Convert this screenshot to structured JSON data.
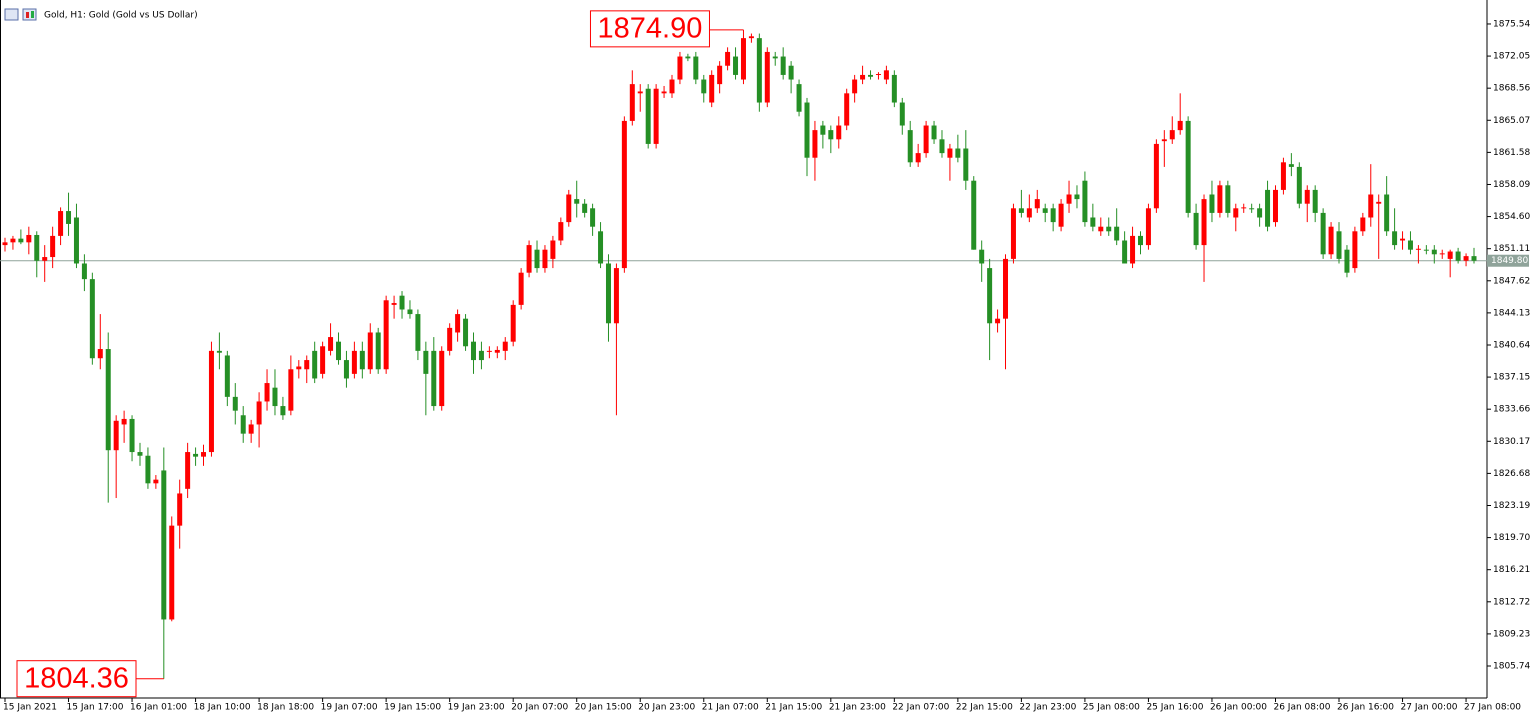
{
  "chart_data": {
    "type": "candlestick",
    "title": "Gold, H1:  Gold (Gold vs US Dollar)",
    "up_color": "#ff0000",
    "down_color": "#258f25",
    "ylim": [
      1802.37,
      1877.82
    ],
    "yticks": [
      1875.54,
      1872.05,
      1868.56,
      1865.07,
      1861.58,
      1858.09,
      {
        "value": 1854.6,
        "label": "1854.60"
      },
      1851.11,
      1847.62,
      1844.13,
      1840.64,
      1837.15,
      1833.66,
      1830.17,
      1826.68,
      1823.19,
      {
        "value": 1819.7,
        "label": "1819.70"
      },
      1816.21,
      1812.72,
      1809.23,
      1805.74
    ],
    "current_price": {
      "value": 1849.8,
      "label": "1849.80"
    },
    "annotations": [
      {
        "value": 1874.9,
        "label": "1874.90"
      },
      {
        "value": 1804.36,
        "label": "1804.36"
      }
    ],
    "categories": [
      "15 Jan 2021",
      null,
      null,
      null,
      null,
      null,
      null,
      null,
      "15 Jan 17:00",
      null,
      null,
      null,
      null,
      null,
      null,
      null,
      "16 Jan 01:00",
      null,
      null,
      null,
      null,
      null,
      null,
      null,
      "18 Jan 10:00",
      null,
      null,
      null,
      null,
      null,
      null,
      null,
      "18 Jan 18:00",
      null,
      null,
      null,
      null,
      null,
      null,
      null,
      "19 Jan 07:00",
      null,
      null,
      null,
      null,
      null,
      null,
      null,
      "19 Jan 15:00",
      null,
      null,
      null,
      null,
      null,
      null,
      null,
      "19 Jan 23:00",
      null,
      null,
      null,
      null,
      null,
      null,
      null,
      "20 Jan 07:00",
      null,
      null,
      null,
      null,
      null,
      null,
      null,
      "20 Jan 15:00",
      null,
      null,
      null,
      null,
      null,
      null,
      null,
      "20 Jan 23:00",
      null,
      null,
      null,
      null,
      null,
      null,
      null,
      "21 Jan 07:00",
      null,
      null,
      null,
      null,
      null,
      null,
      null,
      "21 Jan 15:00",
      null,
      null,
      null,
      null,
      null,
      null,
      null,
      "21 Jan 23:00",
      null,
      null,
      null,
      null,
      null,
      null,
      null,
      "22 Jan 07:00",
      null,
      null,
      null,
      null,
      null,
      null,
      null,
      "22 Jan 15:00",
      null,
      null,
      null,
      null,
      null,
      null,
      null,
      "22 Jan 23:00",
      null,
      null,
      null,
      null,
      null,
      null,
      null,
      "25 Jan 08:00",
      null,
      null,
      null,
      null,
      null,
      null,
      null,
      "25 Jan 16:00",
      null,
      null,
      null,
      null,
      null,
      null,
      null,
      "26 Jan 00:00",
      null,
      null,
      null,
      null,
      null,
      null,
      null,
      "26 Jan 08:00",
      null,
      null,
      null,
      null,
      null,
      null,
      null,
      "26 Jan 16:00",
      null,
      null,
      null,
      null,
      null,
      null,
      null,
      "27 Jan 00:00",
      null,
      null,
      null,
      null,
      null,
      null,
      null,
      "27 Jan 08:00",
      null
    ],
    "candles": [
      [
        1851.5,
        1852.3,
        1850.8,
        1851.8
      ],
      [
        1851.8,
        1852.5,
        1851,
        1852.2
      ],
      [
        1852.2,
        1853.2,
        1851.6,
        1851.8
      ],
      [
        1851.8,
        1853.5,
        1850.5,
        1852.6
      ],
      [
        1852.6,
        1853,
        1848,
        1849.8
      ],
      [
        1849.8,
        1851.5,
        1847.5,
        1850.2
      ],
      [
        1850.2,
        1853.5,
        1849,
        1852.5
      ],
      [
        1852.5,
        1855.6,
        1851.5,
        1855.2
      ],
      [
        1855.2,
        1857.2,
        1852.5,
        1853.8
      ],
      [
        1854.5,
        1856,
        1849,
        1849.5
      ],
      [
        1849.5,
        1850.5,
        1846.5,
        1847.8
      ],
      [
        1847.8,
        1848.5,
        1838.5,
        1839.2
      ],
      [
        1839.2,
        1844,
        1838,
        1840.2
      ],
      [
        1840.2,
        1842,
        1823.5,
        1829.2
      ],
      [
        1829.2,
        1833,
        1824,
        1832.4
      ],
      [
        1832,
        1833.5,
        1830,
        1832.6
      ],
      [
        1832.6,
        1833,
        1828,
        1829
      ],
      [
        1829,
        1830,
        1827.5,
        1828.6
      ],
      [
        1828.6,
        1829.5,
        1825,
        1825.6
      ],
      [
        1825.6,
        1826.5,
        1825,
        1826
      ],
      [
        1827,
        1829.5,
        1804.36,
        1810.8
      ],
      [
        1810.8,
        1822,
        1810.6,
        1821
      ],
      [
        1821,
        1826,
        1818.5,
        1824.5
      ],
      [
        1825,
        1830,
        1824,
        1829
      ],
      [
        1828.8,
        1829.5,
        1827.5,
        1828.5
      ],
      [
        1828.5,
        1829.8,
        1827.5,
        1829
      ],
      [
        1829,
        1841,
        1828.5,
        1840
      ],
      [
        1840,
        1842,
        1838,
        1839.8
      ],
      [
        1839.5,
        1840,
        1834,
        1835
      ],
      [
        1835,
        1836.5,
        1832,
        1833.5
      ],
      [
        1833,
        1834,
        1830,
        1831
      ],
      [
        1831,
        1832.5,
        1830,
        1832
      ],
      [
        1832,
        1835.5,
        1829.5,
        1834.5
      ],
      [
        1834.5,
        1838,
        1833.5,
        1836.5
      ],
      [
        1836,
        1838,
        1833,
        1834
      ],
      [
        1834,
        1835,
        1832.5,
        1833
      ],
      [
        1833.5,
        1839.5,
        1833,
        1838
      ],
      [
        1838,
        1839,
        1837,
        1838.3
      ],
      [
        1838,
        1839.5,
        1836.5,
        1839
      ],
      [
        1840,
        1841,
        1836.5,
        1837
      ],
      [
        1837.5,
        1841,
        1837,
        1840.5
      ],
      [
        1840,
        1843,
        1839.5,
        1841.5
      ],
      [
        1841,
        1842,
        1838.5,
        1839
      ],
      [
        1839,
        1840,
        1836,
        1837
      ],
      [
        1837.5,
        1841,
        1837,
        1840
      ],
      [
        1840,
        1841,
        1837,
        1838
      ],
      [
        1838,
        1843,
        1837.5,
        1842
      ],
      [
        1842,
        1842.5,
        1837.5,
        1838
      ],
      [
        1838,
        1846,
        1837.5,
        1845.5
      ],
      [
        1845,
        1846,
        1843.5,
        1845.2
      ],
      [
        1846,
        1846.5,
        1843.5,
        1844.5
      ],
      [
        1844.5,
        1845.5,
        1843.5,
        1844
      ],
      [
        1844,
        1844.5,
        1839,
        1840
      ],
      [
        1840,
        1841,
        1833,
        1837.5
      ],
      [
        1840,
        1841.5,
        1833.5,
        1834
      ],
      [
        1834,
        1840.5,
        1833.5,
        1840
      ],
      [
        1840,
        1843,
        1839.5,
        1842.5
      ],
      [
        1842,
        1844.5,
        1841,
        1844
      ],
      [
        1843.5,
        1844,
        1840,
        1840.5
      ],
      [
        1841,
        1842,
        1837.5,
        1839
      ],
      [
        1840,
        1841,
        1838,
        1839
      ],
      [
        1840,
        1840.5,
        1839.2,
        1840
      ],
      [
        1839.8,
        1840.5,
        1839.2,
        1840.1
      ],
      [
        1840,
        1841.5,
        1839,
        1841
      ],
      [
        1841,
        1845.5,
        1840.5,
        1845
      ],
      [
        1845,
        1849,
        1844.5,
        1848.5
      ],
      [
        1848.5,
        1852,
        1848,
        1851.5
      ],
      [
        1851,
        1852,
        1848.5,
        1849
      ],
      [
        1849,
        1851.5,
        1848.5,
        1851
      ],
      [
        1850,
        1852.5,
        1849,
        1852
      ],
      [
        1852,
        1854.5,
        1851.5,
        1854
      ],
      [
        1854,
        1857.5,
        1853.5,
        1857
      ],
      [
        1856.5,
        1858.5,
        1854.5,
        1856
      ],
      [
        1856,
        1856.5,
        1854.5,
        1855
      ],
      [
        1855.5,
        1856,
        1852.5,
        1853.5
      ],
      [
        1853,
        1854,
        1849,
        1849.5
      ],
      [
        1849.5,
        1850.5,
        1841,
        1843
      ],
      [
        1843,
        1849.5,
        1833,
        1849
      ],
      [
        1849,
        1865.5,
        1848.5,
        1865
      ],
      [
        1865,
        1870.5,
        1864.5,
        1869
      ],
      [
        1868,
        1869,
        1866,
        1868.2
      ],
      [
        1868.5,
        1869,
        1862,
        1862.5
      ],
      [
        1862.5,
        1869,
        1862,
        1868.5
      ],
      [
        1868,
        1868.8,
        1867.5,
        1868.2
      ],
      [
        1868,
        1870,
        1867.5,
        1869.5
      ],
      [
        1869.5,
        1872.5,
        1869,
        1872
      ],
      [
        1872,
        1872.3,
        1871.5,
        1871.8
      ],
      [
        1872,
        1872.5,
        1869,
        1869.5
      ],
      [
        1869.5,
        1870,
        1867,
        1868
      ],
      [
        1867,
        1870.5,
        1866.5,
        1870
      ],
      [
        1869,
        1871.5,
        1868,
        1871
      ],
      [
        1871,
        1873,
        1870.5,
        1872.5
      ],
      [
        1872,
        1873,
        1869.5,
        1870
      ],
      [
        1869.5,
        1874.9,
        1869,
        1874
      ],
      [
        1874,
        1874.5,
        1873.5,
        1874.2
      ],
      [
        1874,
        1874.5,
        1866,
        1867
      ],
      [
        1867,
        1873,
        1866.5,
        1872.5
      ],
      [
        1872,
        1872.5,
        1871,
        1871.8
      ],
      [
        1872,
        1873,
        1869.5,
        1870
      ],
      [
        1871,
        1871.5,
        1868,
        1869.5
      ],
      [
        1869,
        1869.5,
        1865.5,
        1866
      ],
      [
        1867,
        1867.5,
        1859,
        1861
      ],
      [
        1861,
        1865,
        1858.5,
        1864
      ],
      [
        1864.5,
        1865,
        1862,
        1863.5
      ],
      [
        1864,
        1864.5,
        1861.5,
        1863
      ],
      [
        1863,
        1865.5,
        1862,
        1864.5
      ],
      [
        1864.5,
        1868.5,
        1864,
        1868
      ],
      [
        1868,
        1870,
        1867,
        1869.5
      ],
      [
        1869.5,
        1871,
        1869,
        1870
      ],
      [
        1870,
        1870.5,
        1869.5,
        1869.8
      ],
      [
        1870,
        1870.3,
        1869.5,
        1870.1
      ],
      [
        1869.5,
        1871,
        1869,
        1870.5
      ],
      [
        1870,
        1870.5,
        1866.5,
        1867
      ],
      [
        1867,
        1867.5,
        1863.5,
        1864.5
      ],
      [
        1864,
        1865,
        1860,
        1860.5
      ],
      [
        1860.5,
        1862.5,
        1860,
        1861.5
      ],
      [
        1861.5,
        1865,
        1861,
        1864.5
      ],
      [
        1864.5,
        1865,
        1862.5,
        1863
      ],
      [
        1863,
        1864,
        1861,
        1861.5
      ],
      [
        1861,
        1862.5,
        1858.5,
        1862
      ],
      [
        1862,
        1863.5,
        1860.5,
        1861
      ],
      [
        1862,
        1864,
        1857.5,
        1858.5
      ],
      [
        1858.5,
        1859,
        1851,
        1851
      ],
      [
        1851,
        1852,
        1847.5,
        1849.5
      ],
      [
        1849,
        1850,
        1839,
        1843
      ],
      [
        1843,
        1844.5,
        1842,
        1843.5
      ],
      [
        1843.5,
        1850.5,
        1838,
        1850
      ],
      [
        1850,
        1856,
        1849.5,
        1855.5
      ],
      [
        1855.5,
        1857.5,
        1854.5,
        1855
      ],
      [
        1854.5,
        1857,
        1854,
        1855.5
      ],
      [
        1855.5,
        1857.5,
        1855,
        1856.5
      ],
      [
        1855.5,
        1856,
        1854,
        1855
      ],
      [
        1855.5,
        1856,
        1853,
        1854
      ],
      [
        1853.5,
        1856.5,
        1853,
        1856
      ],
      [
        1856,
        1858.5,
        1855,
        1857
      ],
      [
        1857,
        1858,
        1855.5,
        1856.5
      ],
      [
        1858.5,
        1859.5,
        1853.5,
        1854
      ],
      [
        1854.5,
        1856,
        1853,
        1853.5
      ],
      [
        1853,
        1854.5,
        1852.5,
        1853.5
      ],
      [
        1853.5,
        1854.5,
        1852.5,
        1853
      ],
      [
        1853.5,
        1855.5,
        1851.5,
        1852
      ],
      [
        1852,
        1853,
        1849.5,
        1849.5
      ],
      [
        1849.5,
        1853.5,
        1849,
        1852.5
      ],
      [
        1852.5,
        1853,
        1850.5,
        1851.5
      ],
      [
        1851.5,
        1856,
        1851,
        1855.5
      ],
      [
        1855.5,
        1863,
        1855,
        1862.5
      ],
      [
        1862.8,
        1864,
        1860,
        1863
      ],
      [
        1863,
        1865.5,
        1862.5,
        1864
      ],
      [
        1864,
        1868,
        1863.5,
        1865
      ],
      [
        1865,
        1865.5,
        1854.5,
        1855
      ],
      [
        1855,
        1856,
        1851,
        1851.5
      ],
      [
        1851.5,
        1857,
        1847.5,
        1856.5
      ],
      [
        1857,
        1858.5,
        1854,
        1855
      ],
      [
        1855,
        1858.5,
        1854.5,
        1858
      ],
      [
        1858,
        1858.5,
        1854.5,
        1855
      ],
      [
        1854.5,
        1856,
        1853,
        1855.5
      ],
      [
        1855.5,
        1856,
        1855,
        1855.6
      ],
      [
        1855.5,
        1856,
        1855,
        1855.4
      ],
      [
        1855.5,
        1856,
        1853.5,
        1854.5
      ],
      [
        1857.5,
        1858.5,
        1853,
        1853.5
      ],
      [
        1854,
        1858,
        1853.5,
        1857.5
      ],
      [
        1857.5,
        1861,
        1857,
        1860.5
      ],
      [
        1860.3,
        1861.5,
        1859,
        1860
      ],
      [
        1860,
        1860.5,
        1855.5,
        1856
      ],
      [
        1856,
        1858,
        1854,
        1857.5
      ],
      [
        1857.5,
        1858,
        1854,
        1855
      ],
      [
        1855,
        1855.5,
        1850,
        1850.5
      ],
      [
        1850.5,
        1854,
        1850,
        1853.5
      ],
      [
        1853,
        1854,
        1849.5,
        1850
      ],
      [
        1851,
        1851.5,
        1848,
        1848.5
      ],
      [
        1849,
        1853.5,
        1848.5,
        1853
      ],
      [
        1853,
        1855,
        1852.5,
        1854.5
      ],
      [
        1854.5,
        1860.3,
        1853.5,
        1857
      ],
      [
        1856,
        1857,
        1850,
        1856.2
      ],
      [
        1857,
        1859,
        1852.5,
        1853
      ],
      [
        1853,
        1855.5,
        1851,
        1851.5
      ],
      [
        1852,
        1853,
        1851,
        1852.2
      ],
      [
        1852,
        1853,
        1850.5,
        1851
      ],
      [
        1851,
        1851.5,
        1849.5,
        1851.1
      ],
      [
        1851,
        1851.5,
        1850.5,
        1850.9
      ],
      [
        1851,
        1851.5,
        1849.5,
        1850.5
      ],
      [
        1850.5,
        1851,
        1850,
        1850.6
      ],
      [
        1850,
        1851,
        1848,
        1850.8
      ],
      [
        1850.8,
        1851.2,
        1849.5,
        1849.8
      ],
      [
        1849.8,
        1850.6,
        1849.2,
        1850.3
      ],
      [
        1850.3,
        1851.2,
        1849.5,
        1849.8
      ]
    ]
  }
}
